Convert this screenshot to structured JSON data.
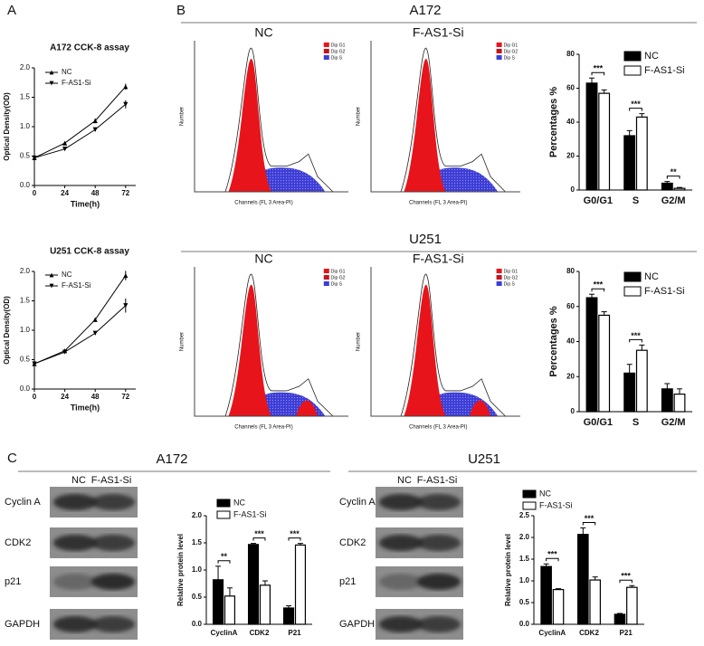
{
  "figure": {
    "panel_labels": [
      "A",
      "B",
      "C"
    ],
    "section_titles": [
      "A172",
      "U251",
      "A172",
      "U251"
    ],
    "flow": {
      "titles": [
        "NC",
        "F-AS1-Si",
        "NC",
        "F-AS1-Si"
      ],
      "y_label": "Number",
      "x_label": "Channels (FL 3 Area-PI)",
      "legend": [
        "Dip G1",
        "Dip G2",
        "Dip S"
      ]
    },
    "blot": {
      "lanes": [
        "NC",
        "F-AS1-Si"
      ],
      "proteins": [
        "Cyclin A",
        "CDK2",
        "p21",
        "GAPDH"
      ]
    }
  },
  "chart_data": [
    {
      "type": "line",
      "title": "A172 CCK-8 assay",
      "x_label": "Time(h)",
      "y_label": "Optical Density(OD)",
      "x": [
        0,
        24,
        48,
        72
      ],
      "xlim": [
        0,
        80
      ],
      "xticks": [
        0,
        24,
        48,
        72
      ],
      "ylim": [
        0,
        2.0
      ],
      "yticks": [
        {
          "value": 0,
          "label": "0.0"
        },
        0.5,
        {
          "value": 1,
          "label": "1.0"
        },
        1.5,
        {
          "value": 2,
          "label": "2.0"
        }
      ],
      "series": [
        {
          "name": "NC",
          "color": "#000000",
          "marker": "up",
          "values": [
            0.47,
            0.72,
            1.1,
            1.68
          ],
          "errors": [
            0.02,
            0.02,
            0.04,
            0.05
          ]
        },
        {
          "name": "F-AS1-Si",
          "color": "#000000",
          "marker": "down",
          "values": [
            0.47,
            0.62,
            0.95,
            1.38
          ],
          "errors": [
            0.02,
            0.02,
            0.03,
            0.07
          ]
        }
      ]
    },
    {
      "type": "line",
      "title": "U251 CCK-8 assay",
      "x_label": "Time(h)",
      "y_label": "Optical Density(OD)",
      "x": [
        0,
        24,
        48,
        72
      ],
      "xlim": [
        0,
        80
      ],
      "xticks": [
        0,
        24,
        48,
        72
      ],
      "ylim": [
        0,
        2.0
      ],
      "yticks": [
        {
          "value": 0,
          "label": "0.0"
        },
        0.5,
        {
          "value": 1,
          "label": "1.0"
        },
        1.5,
        {
          "value": 2,
          "label": "2.0"
        }
      ],
      "series": [
        {
          "name": "NC",
          "color": "#000000",
          "marker": "up",
          "values": [
            0.43,
            0.65,
            1.18,
            1.93
          ],
          "errors": [
            0.02,
            0.02,
            0.03,
            0.08
          ]
        },
        {
          "name": "F-AS1-Si",
          "color": "#000000",
          "marker": "down",
          "values": [
            0.43,
            0.63,
            0.95,
            1.42
          ],
          "errors": [
            0.02,
            0.02,
            0.03,
            0.12
          ]
        }
      ]
    },
    {
      "type": "bar",
      "y_label": "Percentages %",
      "categories": [
        "G0/G1",
        "S",
        "G2/M"
      ],
      "ylim": [
        0,
        80
      ],
      "yticks": [
        0,
        20,
        40,
        60,
        80
      ],
      "annotations": [
        "***",
        "***",
        "**"
      ],
      "series": [
        {
          "name": "NC",
          "color": "#000000",
          "values": [
            63,
            32,
            4
          ],
          "errors": [
            3,
            3,
            1
          ]
        },
        {
          "name": "F-AS1-Si",
          "color": "#ffffff",
          "values": [
            57,
            43,
            1
          ],
          "errors": [
            2,
            2,
            0.5
          ]
        }
      ]
    },
    {
      "type": "bar",
      "y_label": "Percentages %",
      "categories": [
        "G0/G1",
        "S",
        "G2/M"
      ],
      "ylim": [
        0,
        80
      ],
      "yticks": [
        0,
        20,
        40,
        60,
        80
      ],
      "annotations": [
        "***",
        "***",
        null
      ],
      "series": [
        {
          "name": "NC",
          "color": "#000000",
          "values": [
            65,
            22,
            13
          ],
          "errors": [
            2,
            5,
            3
          ]
        },
        {
          "name": "F-AS1-Si",
          "color": "#ffffff",
          "values": [
            55,
            35,
            10
          ],
          "errors": [
            2,
            3,
            3
          ]
        }
      ]
    },
    {
      "type": "bar",
      "y_label": "Relative protein level",
      "categories": [
        "CyclinA",
        "CDK2",
        "P21"
      ],
      "ylim": [
        0,
        2.0
      ],
      "yticks": [
        {
          "value": 0,
          "label": "0.0"
        },
        0.5,
        {
          "value": 1,
          "label": "1.0"
        },
        1.5,
        {
          "value": 2,
          "label": "2.0"
        }
      ],
      "annotations": [
        "**",
        "***",
        "***"
      ],
      "series": [
        {
          "name": "NC",
          "color": "#000000",
          "values": [
            0.82,
            1.47,
            0.3
          ],
          "errors": [
            0.25,
            0.02,
            0.04
          ]
        },
        {
          "name": "F-AS1-Si",
          "color": "#ffffff",
          "values": [
            0.52,
            0.72,
            1.46
          ],
          "errors": [
            0.15,
            0.08,
            0.03
          ]
        }
      ]
    },
    {
      "type": "bar",
      "y_label": "Relative protein level",
      "categories": [
        "CyclinA",
        "CDK2",
        "P21"
      ],
      "ylim": [
        0,
        2.5
      ],
      "yticks": [
        {
          "value": 0,
          "label": "0.0"
        },
        0.5,
        {
          "value": 1,
          "label": "1.0"
        },
        1.5,
        {
          "value": 2,
          "label": "2.0"
        },
        2.5
      ],
      "annotations": [
        "***",
        "***",
        "***"
      ],
      "series": [
        {
          "name": "NC",
          "color": "#000000",
          "values": [
            1.33,
            2.07,
            0.23
          ],
          "errors": [
            0.06,
            0.15,
            0.02
          ]
        },
        {
          "name": "F-AS1-Si",
          "color": "#ffffff",
          "values": [
            0.8,
            1.02,
            0.85
          ],
          "errors": [
            0.02,
            0.07,
            0.04
          ]
        }
      ]
    }
  ]
}
